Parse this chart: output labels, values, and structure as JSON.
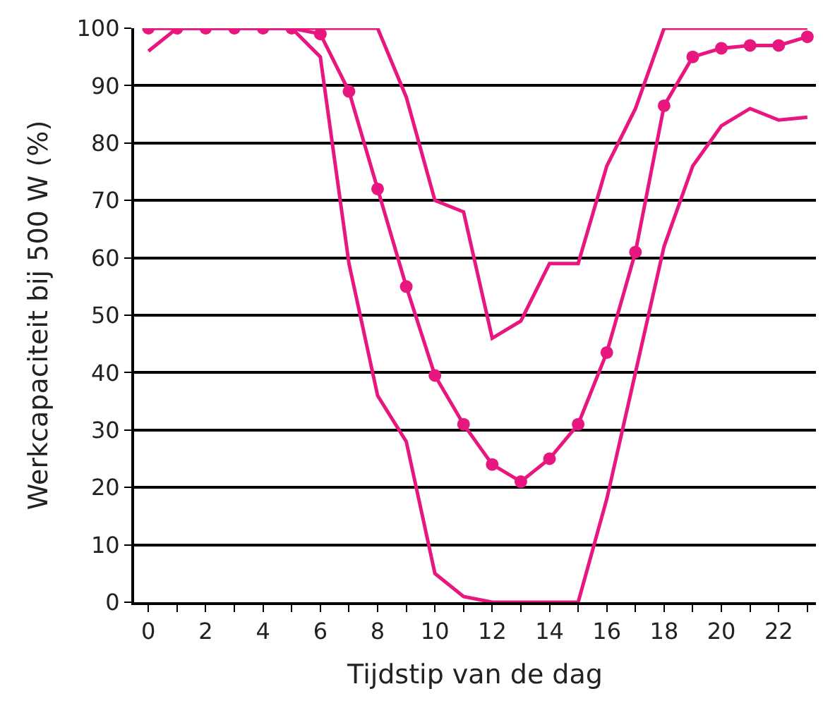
{
  "chart_data": {
    "type": "line",
    "xlabel": "Tijdstip van de dag",
    "ylabel": "Werkcapaciteit bij 500 W (%)",
    "x": [
      0,
      1,
      2,
      3,
      4,
      5,
      6,
      7,
      8,
      9,
      10,
      11,
      12,
      13,
      14,
      15,
      16,
      17,
      18,
      19,
      20,
      21,
      22,
      23
    ],
    "series": [
      {
        "color": "#e8177f",
        "marker": "none",
        "values": [
          100,
          100,
          100,
          100,
          100,
          100,
          100,
          100,
          100,
          88,
          70,
          68,
          46,
          49,
          59,
          59,
          76,
          86,
          100,
          100,
          100,
          100,
          100,
          100
        ]
      },
      {
        "color": "#e8177f",
        "marker": "circle",
        "values": [
          100,
          100,
          100,
          100,
          100,
          100,
          99,
          89,
          72,
          55,
          39.5,
          31,
          24,
          21,
          25,
          31,
          43.5,
          61,
          86.5,
          95,
          96.5,
          97,
          97,
          98.5
        ]
      },
      {
        "color": "#e8177f",
        "marker": "none",
        "values": [
          96,
          100,
          100,
          100,
          100,
          100,
          95,
          59,
          36,
          28,
          5,
          1,
          0,
          0,
          0,
          0,
          18,
          40,
          62,
          76,
          83,
          86,
          84,
          84.5
        ]
      }
    ],
    "xlim": [
      -0.5,
      23.3
    ],
    "ylim": [
      0,
      100
    ],
    "xticks": [
      0,
      {
        "value": 1,
        "label": null
      },
      2,
      {
        "value": 3,
        "label": null
      },
      4,
      {
        "value": 5,
        "label": null
      },
      6,
      {
        "value": 7,
        "label": null
      },
      8,
      {
        "value": 9,
        "label": null
      },
      10,
      {
        "value": 11,
        "label": null
      },
      12,
      {
        "value": 13,
        "label": null
      },
      14,
      {
        "value": 15,
        "label": null
      },
      16,
      {
        "value": 17,
        "label": null
      },
      18,
      {
        "value": 19,
        "label": null
      },
      20,
      {
        "value": 21,
        "label": null
      },
      22,
      {
        "value": 23,
        "label": null
      }
    ],
    "yticks": [
      0,
      10,
      20,
      30,
      40,
      50,
      60,
      70,
      80,
      90,
      100
    ],
    "grid": "y",
    "line_style": "solid"
  }
}
